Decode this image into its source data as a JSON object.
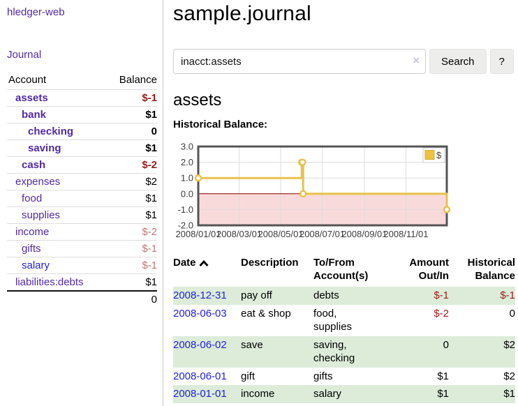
{
  "brand": "hledger-web",
  "sidebar": {
    "nav_journal": "Journal",
    "accounts": {
      "header_account": "Account",
      "header_balance": "Balance",
      "rows": [
        {
          "name": "assets",
          "balance": "$-1"
        },
        {
          "name": "bank",
          "balance": "$1"
        },
        {
          "name": "checking",
          "balance": "0"
        },
        {
          "name": "saving",
          "balance": "$1"
        },
        {
          "name": "cash",
          "balance": "$-2"
        },
        {
          "name": "expenses",
          "balance": "$2"
        },
        {
          "name": "food",
          "balance": "$1"
        },
        {
          "name": "supplies",
          "balance": "$1"
        },
        {
          "name": "income",
          "balance": "$-2"
        },
        {
          "name": "gifts",
          "balance": "$-1"
        },
        {
          "name": "salary",
          "balance": "$-1"
        },
        {
          "name": "liabilities:debts",
          "balance": "$1"
        }
      ],
      "total": "0"
    }
  },
  "main": {
    "title": "sample.journal",
    "search": {
      "value": "inacct:assets",
      "clear_glyph": "×",
      "button_label": "Search",
      "help_label": "?"
    },
    "account_heading": "assets",
    "chart_heading": "Historical Balance:",
    "register": {
      "headers": {
        "date": "Date",
        "description": "Description",
        "to_from": "To/From Account(s)",
        "amount": "Amount Out/In",
        "balance": "Historical Balance"
      },
      "rows": [
        {
          "date": "2008-12-31",
          "description": "pay off",
          "accounts": "debts",
          "amount": "$-1",
          "balance": "$-1"
        },
        {
          "date": "2008-06-03",
          "description": "eat & shop",
          "accounts": "food, supplies",
          "amount": "$-2",
          "balance": "0"
        },
        {
          "date": "2008-06-02",
          "description": "save",
          "accounts": "saving, checking",
          "amount": "0",
          "balance": "$2"
        },
        {
          "date": "2008-06-01",
          "description": "gift",
          "accounts": "gifts",
          "amount": "$1",
          "balance": "$2"
        },
        {
          "date": "2008-01-01",
          "description": "income",
          "accounts": "salary",
          "amount": "$1",
          "balance": "$1"
        }
      ]
    }
  },
  "chart_data": {
    "type": "line",
    "title": "Historical Balance:",
    "step": true,
    "legend": [
      {
        "label": "$",
        "color": "#edc240"
      }
    ],
    "legend_position": "top-right",
    "grid": true,
    "x_unit": "days since 2008-01-01",
    "xlim_days": [
      0,
      365
    ],
    "ylim": [
      -2,
      3
    ],
    "points": [
      {
        "date": "2008-01-01",
        "day": 0,
        "value": 1
      },
      {
        "date": "2008-06-01",
        "day": 152,
        "value": 2
      },
      {
        "date": "2008-06-02",
        "day": 153,
        "value": 2
      },
      {
        "date": "2008-06-03",
        "day": 154,
        "value": 0
      },
      {
        "date": "2008-12-31",
        "day": 365,
        "value": -1
      }
    ],
    "x_ticks": [
      {
        "day": 0,
        "label": "2008/01/01"
      },
      {
        "day": 60,
        "label": "2008/03/01"
      },
      {
        "day": 121,
        "label": "2008/05/01"
      },
      {
        "day": 182,
        "label": "2008/07/01"
      },
      {
        "day": 244,
        "label": "2008/09/01"
      },
      {
        "day": 305,
        "label": "2008/11/01"
      }
    ],
    "y_ticks": [
      {
        "value": 3,
        "label": "3.0"
      },
      {
        "value": 2,
        "label": "2.0"
      },
      {
        "value": 1,
        "label": "1.0"
      },
      {
        "value": 0,
        "label": "0.0"
      },
      {
        "value": -1,
        "label": "-1.0"
      },
      {
        "value": -2,
        "label": "-2.0"
      }
    ],
    "colors": {
      "series": "#e8c24a",
      "marker_fill": "#ffffff",
      "zero_line": "#8b0000",
      "negative_region": "#f9dada",
      "grid": "#dddddd",
      "plot_border": "#545454",
      "tick_label": "#3c3c3c",
      "legend_swatch": "#edc240"
    }
  }
}
